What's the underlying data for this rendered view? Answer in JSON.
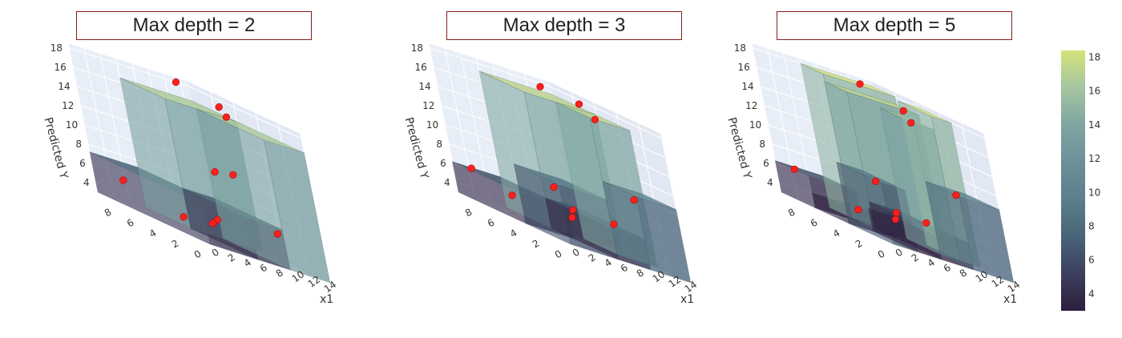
{
  "chart_data": [
    {
      "type": "surface3d",
      "title": "Max depth = 2",
      "xlabel": "x1",
      "ylabel": "",
      "zlabel": "Predicted Y",
      "x_ticks": [
        "0",
        "2",
        "4",
        "6",
        "8",
        "10",
        "12",
        "14"
      ],
      "y_ticks": [
        "0",
        "2",
        "4",
        "6",
        "8"
      ],
      "z_ticks": [
        "4",
        "6",
        "8",
        "10",
        "12",
        "14",
        "16",
        "18"
      ],
      "zlim": [
        3,
        18.5
      ],
      "regions": [
        {
          "x": [
            0,
            6
          ],
          "y": [
            0,
            10
          ],
          "z": 7.2
        },
        {
          "x": [
            6,
            10
          ],
          "y": [
            0,
            6
          ],
          "z": 7.2
        },
        {
          "x": [
            10,
            15
          ],
          "y": [
            0,
            6
          ],
          "z": 16.5
        },
        {
          "x": [
            6,
            15
          ],
          "y": [
            6,
            10
          ],
          "z": 16.5
        }
      ],
      "points": [
        {
          "x": 3,
          "y": 1,
          "z": 5.8
        },
        {
          "x": 5,
          "y": 3,
          "z": 4.9
        },
        {
          "x": 12,
          "y": 2,
          "z": 6.2
        },
        {
          "x": 4,
          "y": 5,
          "z": 4.2
        },
        {
          "x": 1,
          "y": 8,
          "z": 5.6
        },
        {
          "x": 8,
          "y": 4,
          "z": 10.5
        },
        {
          "x": 11,
          "y": 4,
          "z": 17.0
        },
        {
          "x": 13,
          "y": 6,
          "z": 17.5
        },
        {
          "x": 12,
          "y": 9,
          "z": 18.2
        },
        {
          "x": 9,
          "y": 3,
          "z": 11.0
        }
      ]
    },
    {
      "type": "surface3d",
      "title": "Max depth = 3",
      "xlabel": "x1",
      "ylabel": "",
      "zlabel": "Predicted Y",
      "x_ticks": [
        "0",
        "2",
        "4",
        "6",
        "8",
        "10",
        "12",
        "14"
      ],
      "y_ticks": [
        "0",
        "2",
        "4",
        "6",
        "8"
      ],
      "z_ticks": [
        "4",
        "6",
        "8",
        "10",
        "12",
        "14",
        "16",
        "18"
      ],
      "zlim": [
        3,
        18.5
      ],
      "regions": [
        {
          "x": [
            0,
            6
          ],
          "y": [
            0,
            4
          ],
          "z": 9.2
        },
        {
          "x": [
            0,
            6
          ],
          "y": [
            4,
            10
          ],
          "z": 6.2
        },
        {
          "x": [
            6,
            10
          ],
          "y": [
            0,
            6
          ],
          "z": 6.2
        },
        {
          "x": [
            10,
            15
          ],
          "y": [
            0,
            3
          ],
          "z": 10.6
        },
        {
          "x": [
            10,
            15
          ],
          "y": [
            3,
            6
          ],
          "z": 17.2
        },
        {
          "x": [
            6,
            15
          ],
          "y": [
            6,
            10
          ],
          "z": 17.2
        }
      ],
      "points": [
        {
          "x": 2,
          "y": 2,
          "z": 8.4
        },
        {
          "x": 5,
          "y": 3,
          "z": 5.5
        },
        {
          "x": 3,
          "y": 7,
          "z": 5.1
        },
        {
          "x": 1,
          "y": 9,
          "z": 6.3
        },
        {
          "x": 8,
          "y": 5,
          "z": 6.0
        },
        {
          "x": 11,
          "y": 1,
          "z": 10.0
        },
        {
          "x": 12,
          "y": 4,
          "z": 17.0
        },
        {
          "x": 13,
          "y": 6,
          "z": 17.8
        },
        {
          "x": 11,
          "y": 8,
          "z": 18.0
        },
        {
          "x": 9,
          "y": 2,
          "z": 6.4
        }
      ]
    },
    {
      "type": "surface3d",
      "title": "Max depth = 5",
      "xlabel": "x1",
      "ylabel": "",
      "zlabel": "Predicted Y",
      "x_ticks": [
        "0",
        "2",
        "4",
        "6",
        "8",
        "10",
        "12",
        "14"
      ],
      "y_ticks": [
        "0",
        "2",
        "4",
        "6",
        "8"
      ],
      "z_ticks": [
        "4",
        "6",
        "8",
        "10",
        "12",
        "14",
        "16",
        "18"
      ],
      "zlim": [
        3,
        18.5
      ],
      "regions": [
        {
          "x": [
            0,
            3
          ],
          "y": [
            0,
            4
          ],
          "z": 9.4
        },
        {
          "x": [
            3,
            6
          ],
          "y": [
            0,
            4
          ],
          "z": 5.4
        },
        {
          "x": [
            0,
            6
          ],
          "y": [
            4,
            7
          ],
          "z": 4.6
        },
        {
          "x": [
            0,
            6
          ],
          "y": [
            7,
            10
          ],
          "z": 6.3
        },
        {
          "x": [
            6,
            10
          ],
          "y": [
            0,
            6
          ],
          "z": 5.8
        },
        {
          "x": [
            10,
            15
          ],
          "y": [
            0,
            3
          ],
          "z": 10.6
        },
        {
          "x": [
            10,
            12.5
          ],
          "y": [
            3,
            6
          ],
          "z": 16.6
        },
        {
          "x": [
            12.5,
            15
          ],
          "y": [
            3,
            6
          ],
          "z": 18.0
        },
        {
          "x": [
            6,
            15
          ],
          "y": [
            6,
            8
          ],
          "z": 17.2
        },
        {
          "x": [
            6,
            15
          ],
          "y": [
            8,
            10
          ],
          "z": 18.0
        }
      ],
      "points": [
        {
          "x": 2,
          "y": 2,
          "z": 9.0
        },
        {
          "x": 5,
          "y": 3,
          "z": 5.3
        },
        {
          "x": 3,
          "y": 5,
          "z": 4.7
        },
        {
          "x": 1,
          "y": 9,
          "z": 6.2
        },
        {
          "x": 8,
          "y": 5,
          "z": 5.7
        },
        {
          "x": 11,
          "y": 1,
          "z": 10.5
        },
        {
          "x": 11,
          "y": 4,
          "z": 16.4
        },
        {
          "x": 13,
          "y": 6,
          "z": 17.1
        },
        {
          "x": 12,
          "y": 9,
          "z": 18.0
        },
        {
          "x": 9,
          "y": 3,
          "z": 6.0
        }
      ]
    }
  ],
  "colorbar": {
    "ticks": [
      "4",
      "6",
      "8",
      "10",
      "12",
      "14",
      "16",
      "18"
    ],
    "range": [
      3,
      18.4
    ],
    "colors": [
      "#2d1e3e",
      "#3b3f5c",
      "#496478",
      "#5b7f8c",
      "#6b9097",
      "#7fa5a3",
      "#a4c59f",
      "#d6e27a"
    ]
  },
  "colors": {
    "point": "#ff1f1f",
    "title_border": "#8b1a1a",
    "scene_background": "#e5ecf6"
  }
}
